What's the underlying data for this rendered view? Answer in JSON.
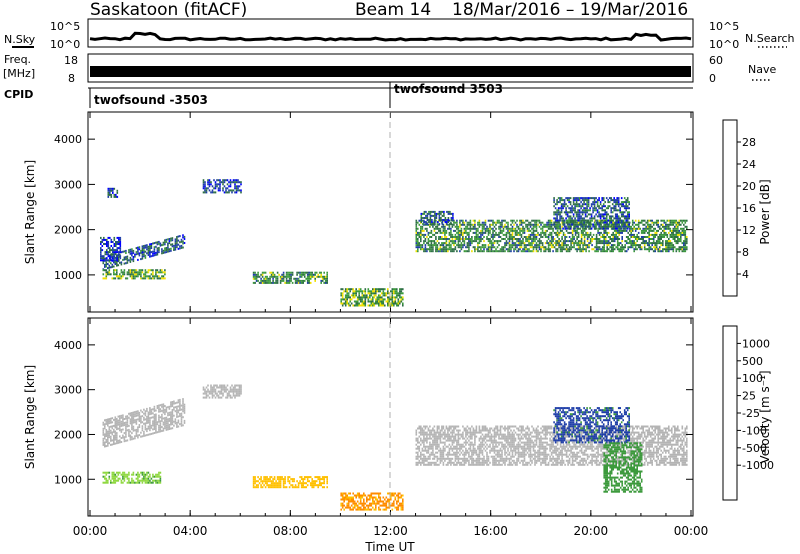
{
  "header": {
    "station": "Saskatoon (fitACF)",
    "beam": "Beam 14",
    "date_range": "18/Mar/2016 – 19/Mar/2016"
  },
  "panels": {
    "nsky_label": "N.Sky",
    "nsearch_label": "N.Search",
    "freq_label": "Freq.",
    "freq_unit": "[MHz]",
    "nave_label": "Nave",
    "cpid_label": "CPID",
    "cpid_segments": [
      {
        "name": "twofsound -3503",
        "start_hr": 0,
        "end_hr": 12
      },
      {
        "name": "twofsound 3503",
        "start_hr": 12,
        "end_hr": 24
      }
    ],
    "noise_ticks_left": [
      "10^5",
      "10^0"
    ],
    "noise_ticks_right": [
      "10^5",
      "10^0"
    ],
    "freq_ticks": [
      "18",
      "8"
    ],
    "nave_ticks": [
      "60",
      "0"
    ]
  },
  "colors": {
    "power": [
      "#0000ff",
      "#1e3ea8",
      "#2e6e46",
      "#3d9a3d",
      "#f0e000",
      "#ff8c00",
      "#f05000",
      "#ff0000"
    ],
    "velocity": [
      "#ff0000",
      "#ff4400",
      "#ff8c00",
      "#ffc000",
      "#c0c0c0",
      "#c0c0c0",
      "#8fd840",
      "#3d9a3d",
      "#1e3ea8",
      "#0000ff"
    ],
    "ground_scatter": "#b4b4b4"
  },
  "chart_data": [
    {
      "type": "heatmap",
      "title": "Power",
      "xlabel": "",
      "ylabel": "Slant Range [km]",
      "colorbar_label": "Power [dB]",
      "colorbar_ticks": [
        "4",
        "8",
        "12",
        "16",
        "20",
        "24",
        "28"
      ],
      "x_ticks": [
        "00:00",
        "04:00",
        "08:00",
        "12:00",
        "16:00",
        "20:00",
        "00:00"
      ],
      "y_ticks": [
        "1000",
        "2000",
        "3000",
        "4000"
      ],
      "xlim": [
        0,
        24
      ],
      "ylim": [
        180,
        4600
      ],
      "scatter_regions": [
        {
          "t0": 0.5,
          "t1": 3.8,
          "r0": 1100,
          "r1": 1400,
          "slope": 500,
          "db": 8
        },
        {
          "t0": 0.5,
          "t1": 3.0,
          "r0": 900,
          "r1": 1100,
          "slope": 0,
          "db": 14
        },
        {
          "t0": 0.4,
          "t1": 1.2,
          "r0": 1300,
          "r1": 1800,
          "slope": 0,
          "db": 6
        },
        {
          "t0": 0.7,
          "t1": 1.1,
          "r0": 2700,
          "r1": 2900,
          "slope": 0,
          "db": 6
        },
        {
          "t0": 4.5,
          "t1": 6.0,
          "r0": 2800,
          "r1": 3100,
          "slope": 0,
          "db": 6
        },
        {
          "t0": 6.5,
          "t1": 9.5,
          "r0": 800,
          "r1": 1050,
          "slope": 0,
          "db": 12
        },
        {
          "t0": 10.0,
          "t1": 12.5,
          "r0": 300,
          "r1": 700,
          "slope": 0,
          "db": 14
        },
        {
          "t0": 13.0,
          "t1": 23.8,
          "r0": 1500,
          "r1": 2200,
          "slope": 0,
          "db": 12
        },
        {
          "t0": 18.5,
          "t1": 21.5,
          "r0": 2000,
          "r1": 2700,
          "slope": 0,
          "db": 8
        },
        {
          "t0": 13.2,
          "t1": 14.5,
          "r0": 2100,
          "r1": 2400,
          "slope": 0,
          "db": 8
        }
      ]
    },
    {
      "type": "heatmap",
      "title": "Velocity",
      "xlabel": "Time UT",
      "ylabel": "Slant Range [km]",
      "colorbar_label": "Velocity [m s⁻¹]",
      "colorbar_ticks": [
        "1000",
        "500",
        "100",
        "25",
        "-25",
        "-100",
        "-500",
        "-1000"
      ],
      "x_ticks": [
        "00:00",
        "04:00",
        "08:00",
        "12:00",
        "16:00",
        "20:00",
        "00:00"
      ],
      "y_ticks": [
        "1000",
        "2000",
        "3000",
        "4000"
      ],
      "xlim": [
        0,
        24
      ],
      "ylim": [
        180,
        4600
      ],
      "scatter_regions": [
        {
          "t0": 0.5,
          "t1": 3.8,
          "r0": 1700,
          "r1": 2300,
          "slope": 500,
          "vel": 0,
          "gs": true
        },
        {
          "t0": 0.5,
          "t1": 2.8,
          "r0": 900,
          "r1": 1150,
          "slope": 0,
          "vel": 80
        },
        {
          "t0": 6.5,
          "t1": 9.5,
          "r0": 800,
          "r1": 1050,
          "slope": 0,
          "vel": -60
        },
        {
          "t0": 10.0,
          "t1": 12.5,
          "r0": 300,
          "r1": 700,
          "slope": 0,
          "vel": -120
        },
        {
          "t0": 13.0,
          "t1": 23.8,
          "r0": 1300,
          "r1": 2200,
          "slope": 0,
          "vel": 0,
          "gs": true
        },
        {
          "t0": 18.5,
          "t1": 21.5,
          "r0": 1800,
          "r1": 2600,
          "slope": 0,
          "vel": 700
        },
        {
          "t0": 20.5,
          "t1": 22.0,
          "r0": 700,
          "r1": 1800,
          "slope": 0,
          "vel": 300
        },
        {
          "t0": 4.5,
          "t1": 6.0,
          "r0": 2800,
          "r1": 3100,
          "slope": 0,
          "vel": 0,
          "gs": true
        }
      ]
    }
  ]
}
